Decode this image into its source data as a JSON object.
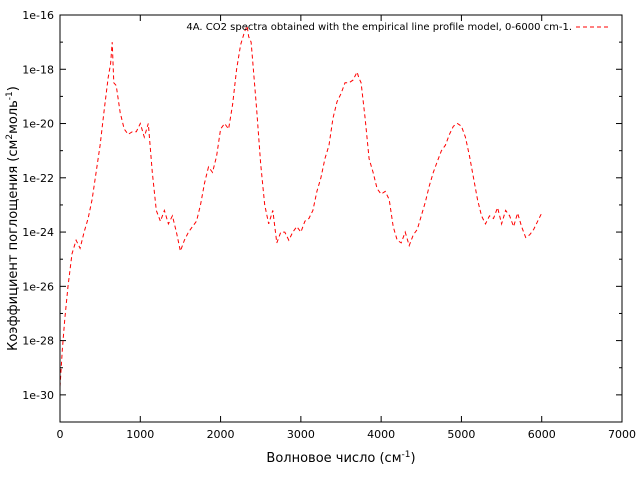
{
  "chart_data": {
    "type": "line",
    "title": "",
    "xlabel": "Волновое число (см",
    "xlabel_sup": "-1",
    "xlabel_end": ")",
    "ylabel": "Коэффициент поглощения (см",
    "ylabel_sup1": "2",
    "ylabel_mid": "моль",
    "ylabel_sup2": "-1",
    "ylabel_end": ")",
    "xlim": [
      0,
      7000
    ],
    "ylim_log10": [
      -31,
      -16
    ],
    "yscale": "log",
    "grid": false,
    "legend_position": "top-right",
    "x_ticks": [
      0,
      1000,
      2000,
      3000,
      4000,
      5000,
      6000,
      7000
    ],
    "x_tick_labels": [
      "0",
      "1000",
      "2000",
      "3000",
      "4000",
      "5000",
      "6000",
      "7000"
    ],
    "y_ticks_log10": [
      -30,
      -28,
      -26,
      -24,
      -22,
      -20,
      -18,
      -16
    ],
    "y_tick_labels": [
      "1e-30",
      "1e-28",
      "1e-26",
      "1e-24",
      "1e-22",
      "1e-20",
      "1e-18",
      "1e-16"
    ],
    "series": [
      {
        "name": "4A. CO2 spectra obtained with the empirical line profile model, 0-6000 cm-1.",
        "color": "#ff0000",
        "line_style": "dashed",
        "x": [
          0,
          30,
          60,
          100,
          150,
          200,
          250,
          300,
          350,
          400,
          450,
          500,
          550,
          600,
          630,
          650,
          670,
          700,
          750,
          800,
          850,
          900,
          950,
          1000,
          1050,
          1100,
          1150,
          1200,
          1250,
          1300,
          1350,
          1400,
          1450,
          1500,
          1550,
          1600,
          1650,
          1700,
          1750,
          1800,
          1850,
          1900,
          1950,
          2000,
          2050,
          2100,
          2150,
          2200,
          2250,
          2300,
          2330,
          2350,
          2380,
          2400,
          2450,
          2500,
          2550,
          2600,
          2650,
          2700,
          2750,
          2800,
          2850,
          2900,
          2950,
          3000,
          3050,
          3100,
          3150,
          3200,
          3250,
          3300,
          3350,
          3400,
          3450,
          3500,
          3550,
          3600,
          3650,
          3700,
          3720,
          3750,
          3800,
          3850,
          3900,
          3950,
          4000,
          4050,
          4100,
          4150,
          4200,
          4250,
          4300,
          4350,
          4400,
          4450,
          4500,
          4550,
          4600,
          4650,
          4700,
          4750,
          4800,
          4850,
          4900,
          4950,
          5000,
          5050,
          5100,
          5150,
          5200,
          5250,
          5300,
          5350,
          5400,
          5450,
          5500,
          5550,
          5600,
          5650,
          5700,
          5750,
          5800,
          5850,
          5900,
          5950,
          6000
        ],
        "y_log10": [
          -29.7,
          -28.3,
          -27.2,
          -26.0,
          -24.8,
          -24.3,
          -24.6,
          -24.0,
          -23.5,
          -22.8,
          -21.8,
          -20.8,
          -19.5,
          -18.3,
          -17.8,
          -17.0,
          -18.5,
          -18.6,
          -19.6,
          -20.2,
          -20.4,
          -20.3,
          -20.3,
          -20.0,
          -20.5,
          -20.0,
          -21.8,
          -23.2,
          -23.6,
          -23.2,
          -23.7,
          -23.4,
          -24.0,
          -24.7,
          -24.3,
          -24.0,
          -23.8,
          -23.6,
          -23.0,
          -22.2,
          -21.6,
          -21.8,
          -21.2,
          -20.2,
          -20.0,
          -20.2,
          -19.3,
          -18.0,
          -17.1,
          -16.6,
          -16.4,
          -16.8,
          -17.0,
          -17.7,
          -19.5,
          -21.5,
          -23.0,
          -23.7,
          -23.2,
          -24.4,
          -24.0,
          -24.0,
          -24.3,
          -24.0,
          -23.8,
          -24.0,
          -23.6,
          -23.5,
          -23.2,
          -22.5,
          -22.0,
          -21.3,
          -20.8,
          -19.8,
          -19.2,
          -18.9,
          -18.5,
          -18.5,
          -18.4,
          -18.1,
          -18.3,
          -18.5,
          -19.8,
          -21.3,
          -21.8,
          -22.4,
          -22.6,
          -22.5,
          -22.8,
          -23.8,
          -24.3,
          -24.4,
          -24.0,
          -24.5,
          -24.1,
          -23.9,
          -23.4,
          -22.9,
          -22.3,
          -21.8,
          -21.4,
          -21.0,
          -20.8,
          -20.4,
          -20.1,
          -20.0,
          -20.1,
          -20.5,
          -21.2,
          -22.0,
          -22.8,
          -23.4,
          -23.7,
          -23.4,
          -23.5,
          -23.1,
          -23.7,
          -23.2,
          -23.4,
          -23.8,
          -23.3,
          -23.8,
          -24.2,
          -24.1,
          -23.9,
          -23.6,
          -23.3
        ]
      }
    ]
  }
}
